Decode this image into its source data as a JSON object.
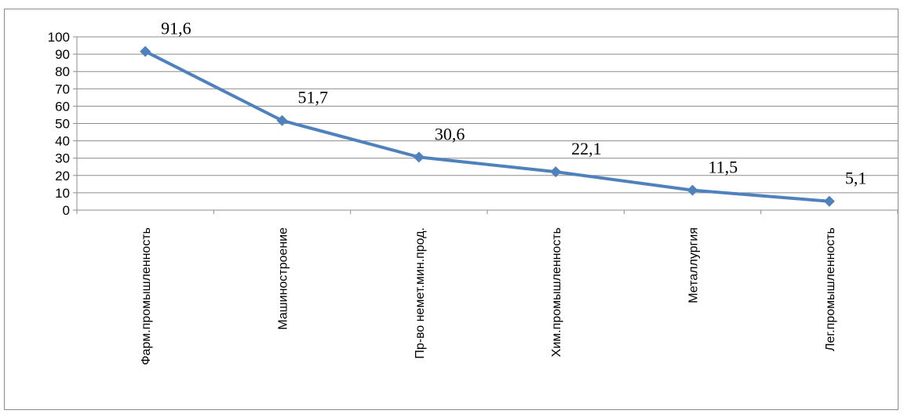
{
  "chart_data": {
    "type": "line",
    "categories": [
      "Фарм.промышленность",
      "Машиностроение",
      "Пр-во немет.мин.прод.",
      "Хим.промышленность",
      "Металлургия",
      "Лег.промышленность"
    ],
    "values": [
      91.6,
      51.7,
      30.6,
      22.1,
      11.5,
      5.1
    ],
    "data_labels": [
      "91,6",
      "51,7",
      "30,6",
      "22,1",
      "11,5",
      "5,1"
    ],
    "ylim": [
      0,
      100
    ],
    "yticks": [
      0,
      10,
      20,
      30,
      40,
      50,
      60,
      70,
      80,
      90,
      100
    ],
    "grid": true,
    "legend": "none",
    "colors": {
      "line": "#4f81bd",
      "grid": "#8c8c8c",
      "axis": "#8c8c8c",
      "text": "#000000"
    }
  }
}
